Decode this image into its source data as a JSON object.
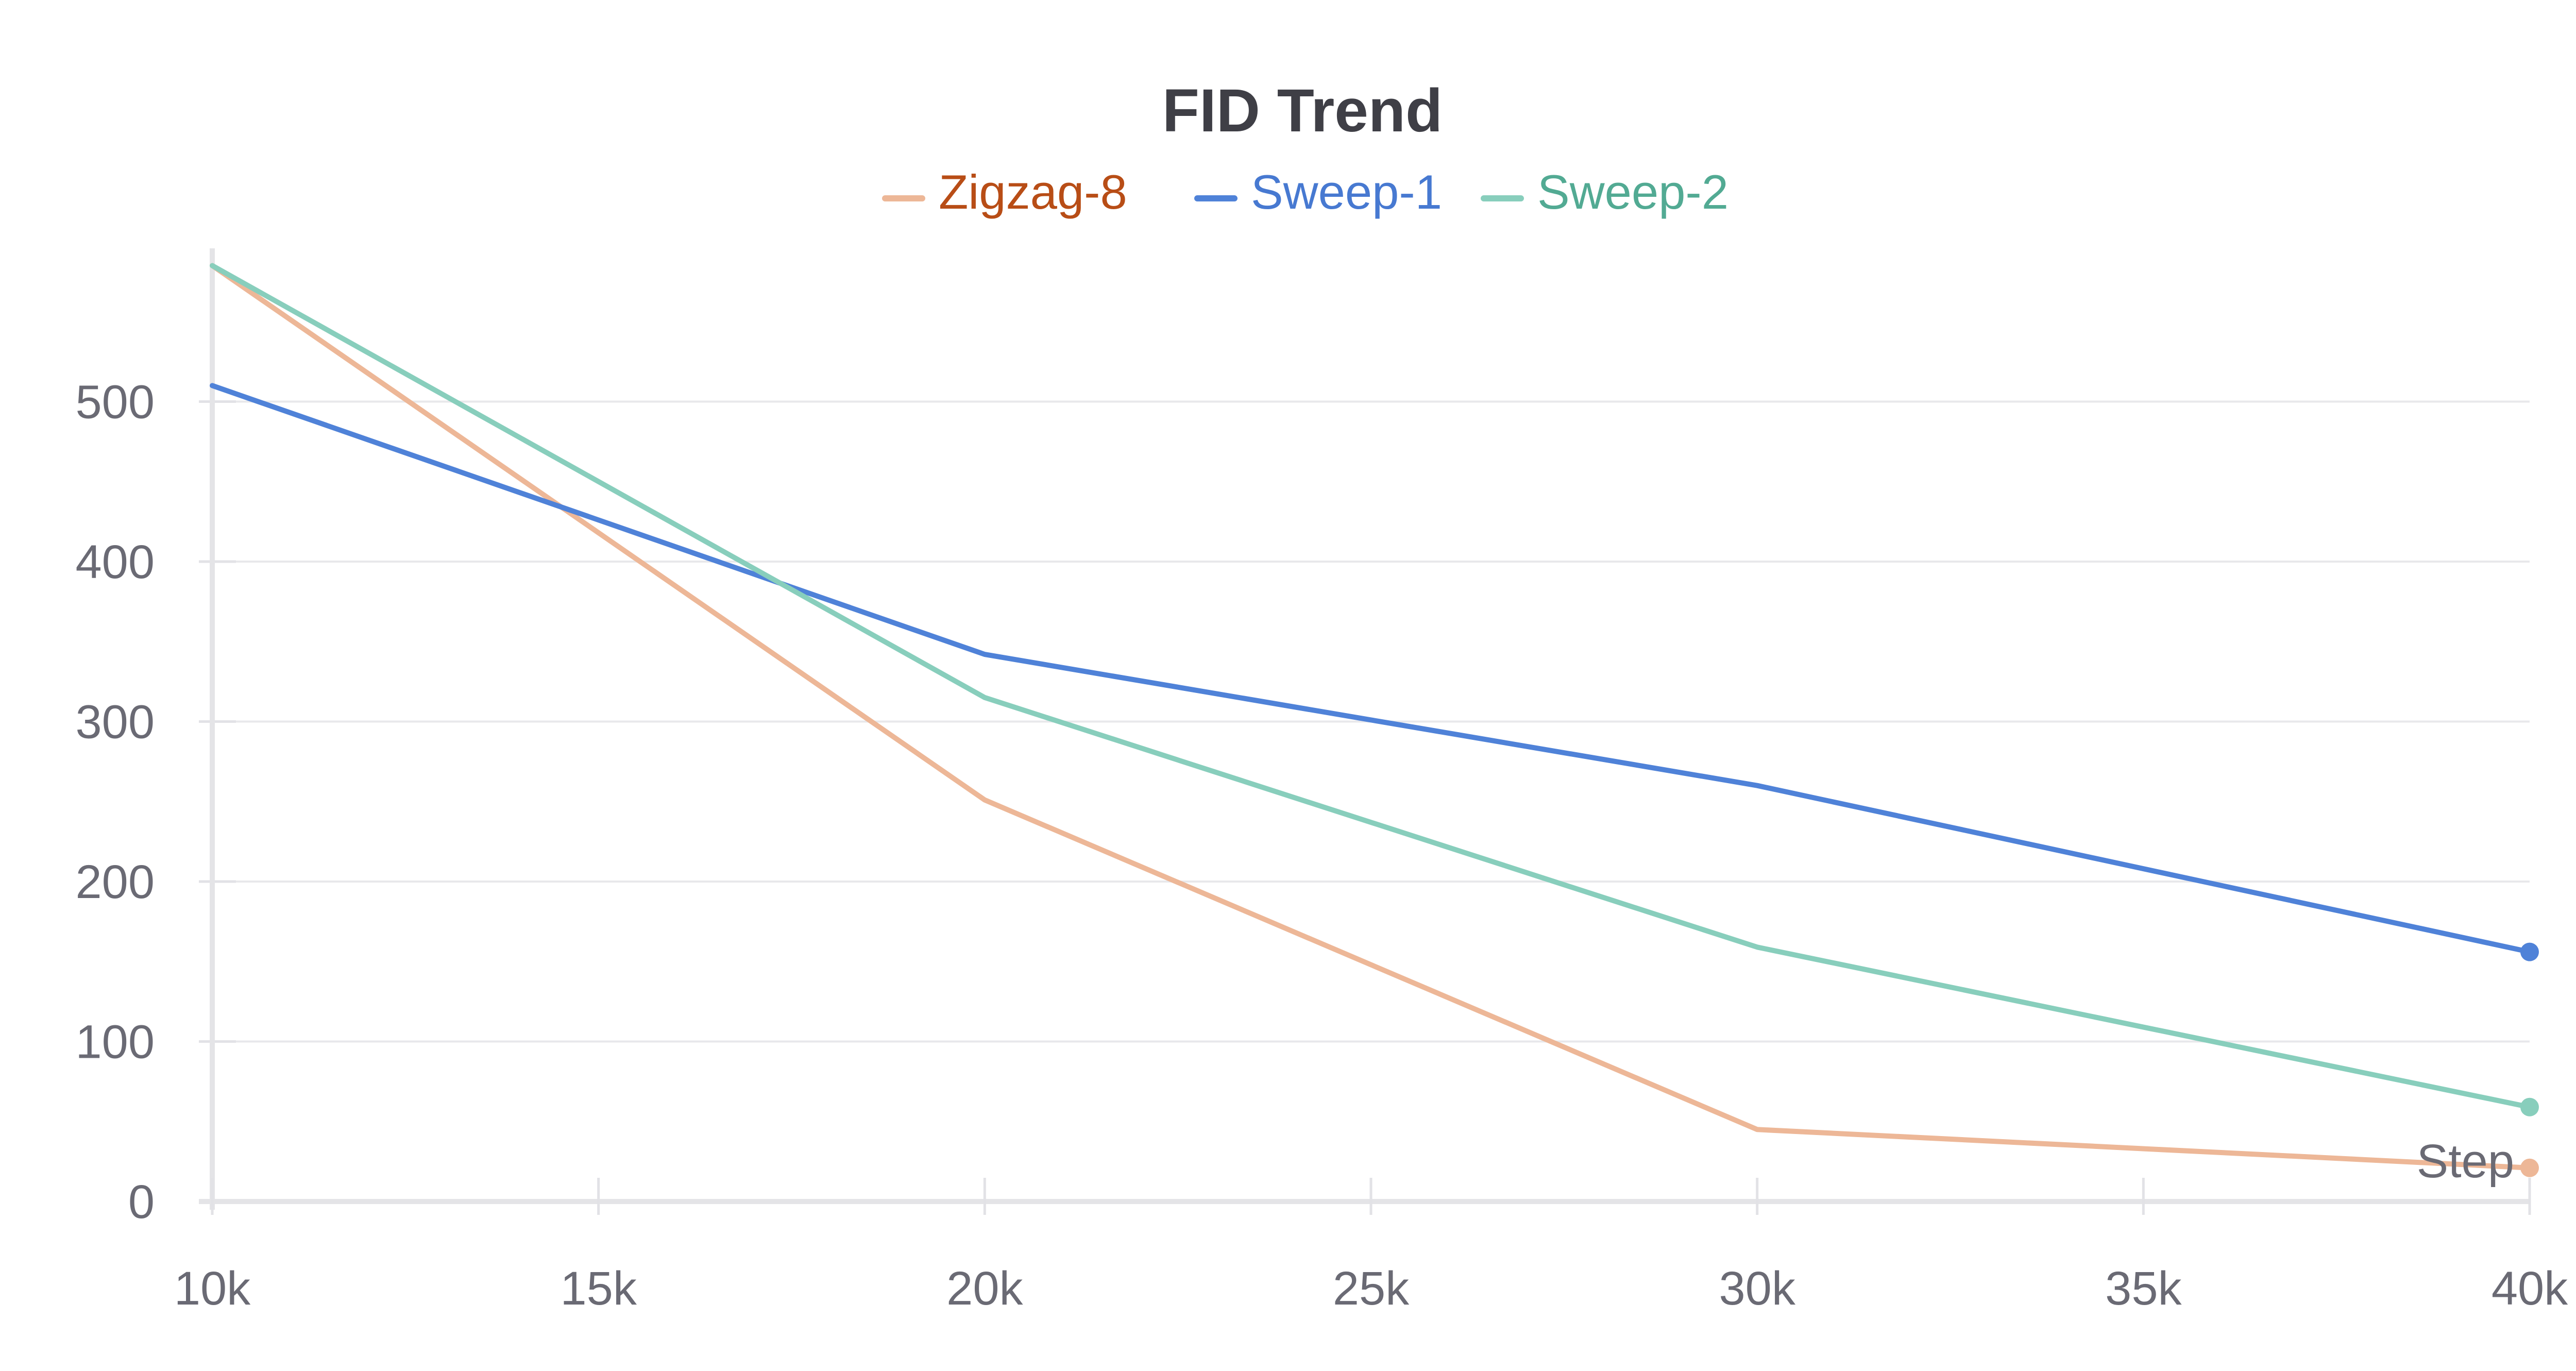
{
  "chart_data": {
    "type": "line",
    "title": "FID Trend",
    "xlabel": "Step",
    "ylabel": "",
    "x": [
      10000,
      20000,
      30000,
      40000
    ],
    "xlim": [
      10000,
      40000
    ],
    "ylim": [
      0,
      590
    ],
    "xticks": [
      10000,
      15000,
      20000,
      25000,
      30000,
      35000,
      40000
    ],
    "xtick_labels": [
      "10k",
      "15k",
      "20k",
      "25k",
      "30k",
      "35k",
      "40k"
    ],
    "yticks": [
      0,
      100,
      200,
      300,
      400,
      500
    ],
    "ytick_labels": [
      "0",
      "100",
      "200",
      "300",
      "400",
      "500"
    ],
    "grid": true,
    "legend_position": "top-center",
    "series": [
      {
        "name": "Zigzag-8",
        "color": "#EDB797",
        "label_color": "#B84D16",
        "values": [
          585,
          251,
          45,
          21
        ]
      },
      {
        "name": "Sweep-1",
        "color": "#4F82D8",
        "label_color": "#4779D1",
        "values": [
          510,
          342,
          260,
          156
        ]
      },
      {
        "name": "Sweep-2",
        "color": "#88CEBC",
        "label_color": "#52AA93",
        "values": [
          585,
          315,
          159,
          59
        ]
      }
    ]
  }
}
